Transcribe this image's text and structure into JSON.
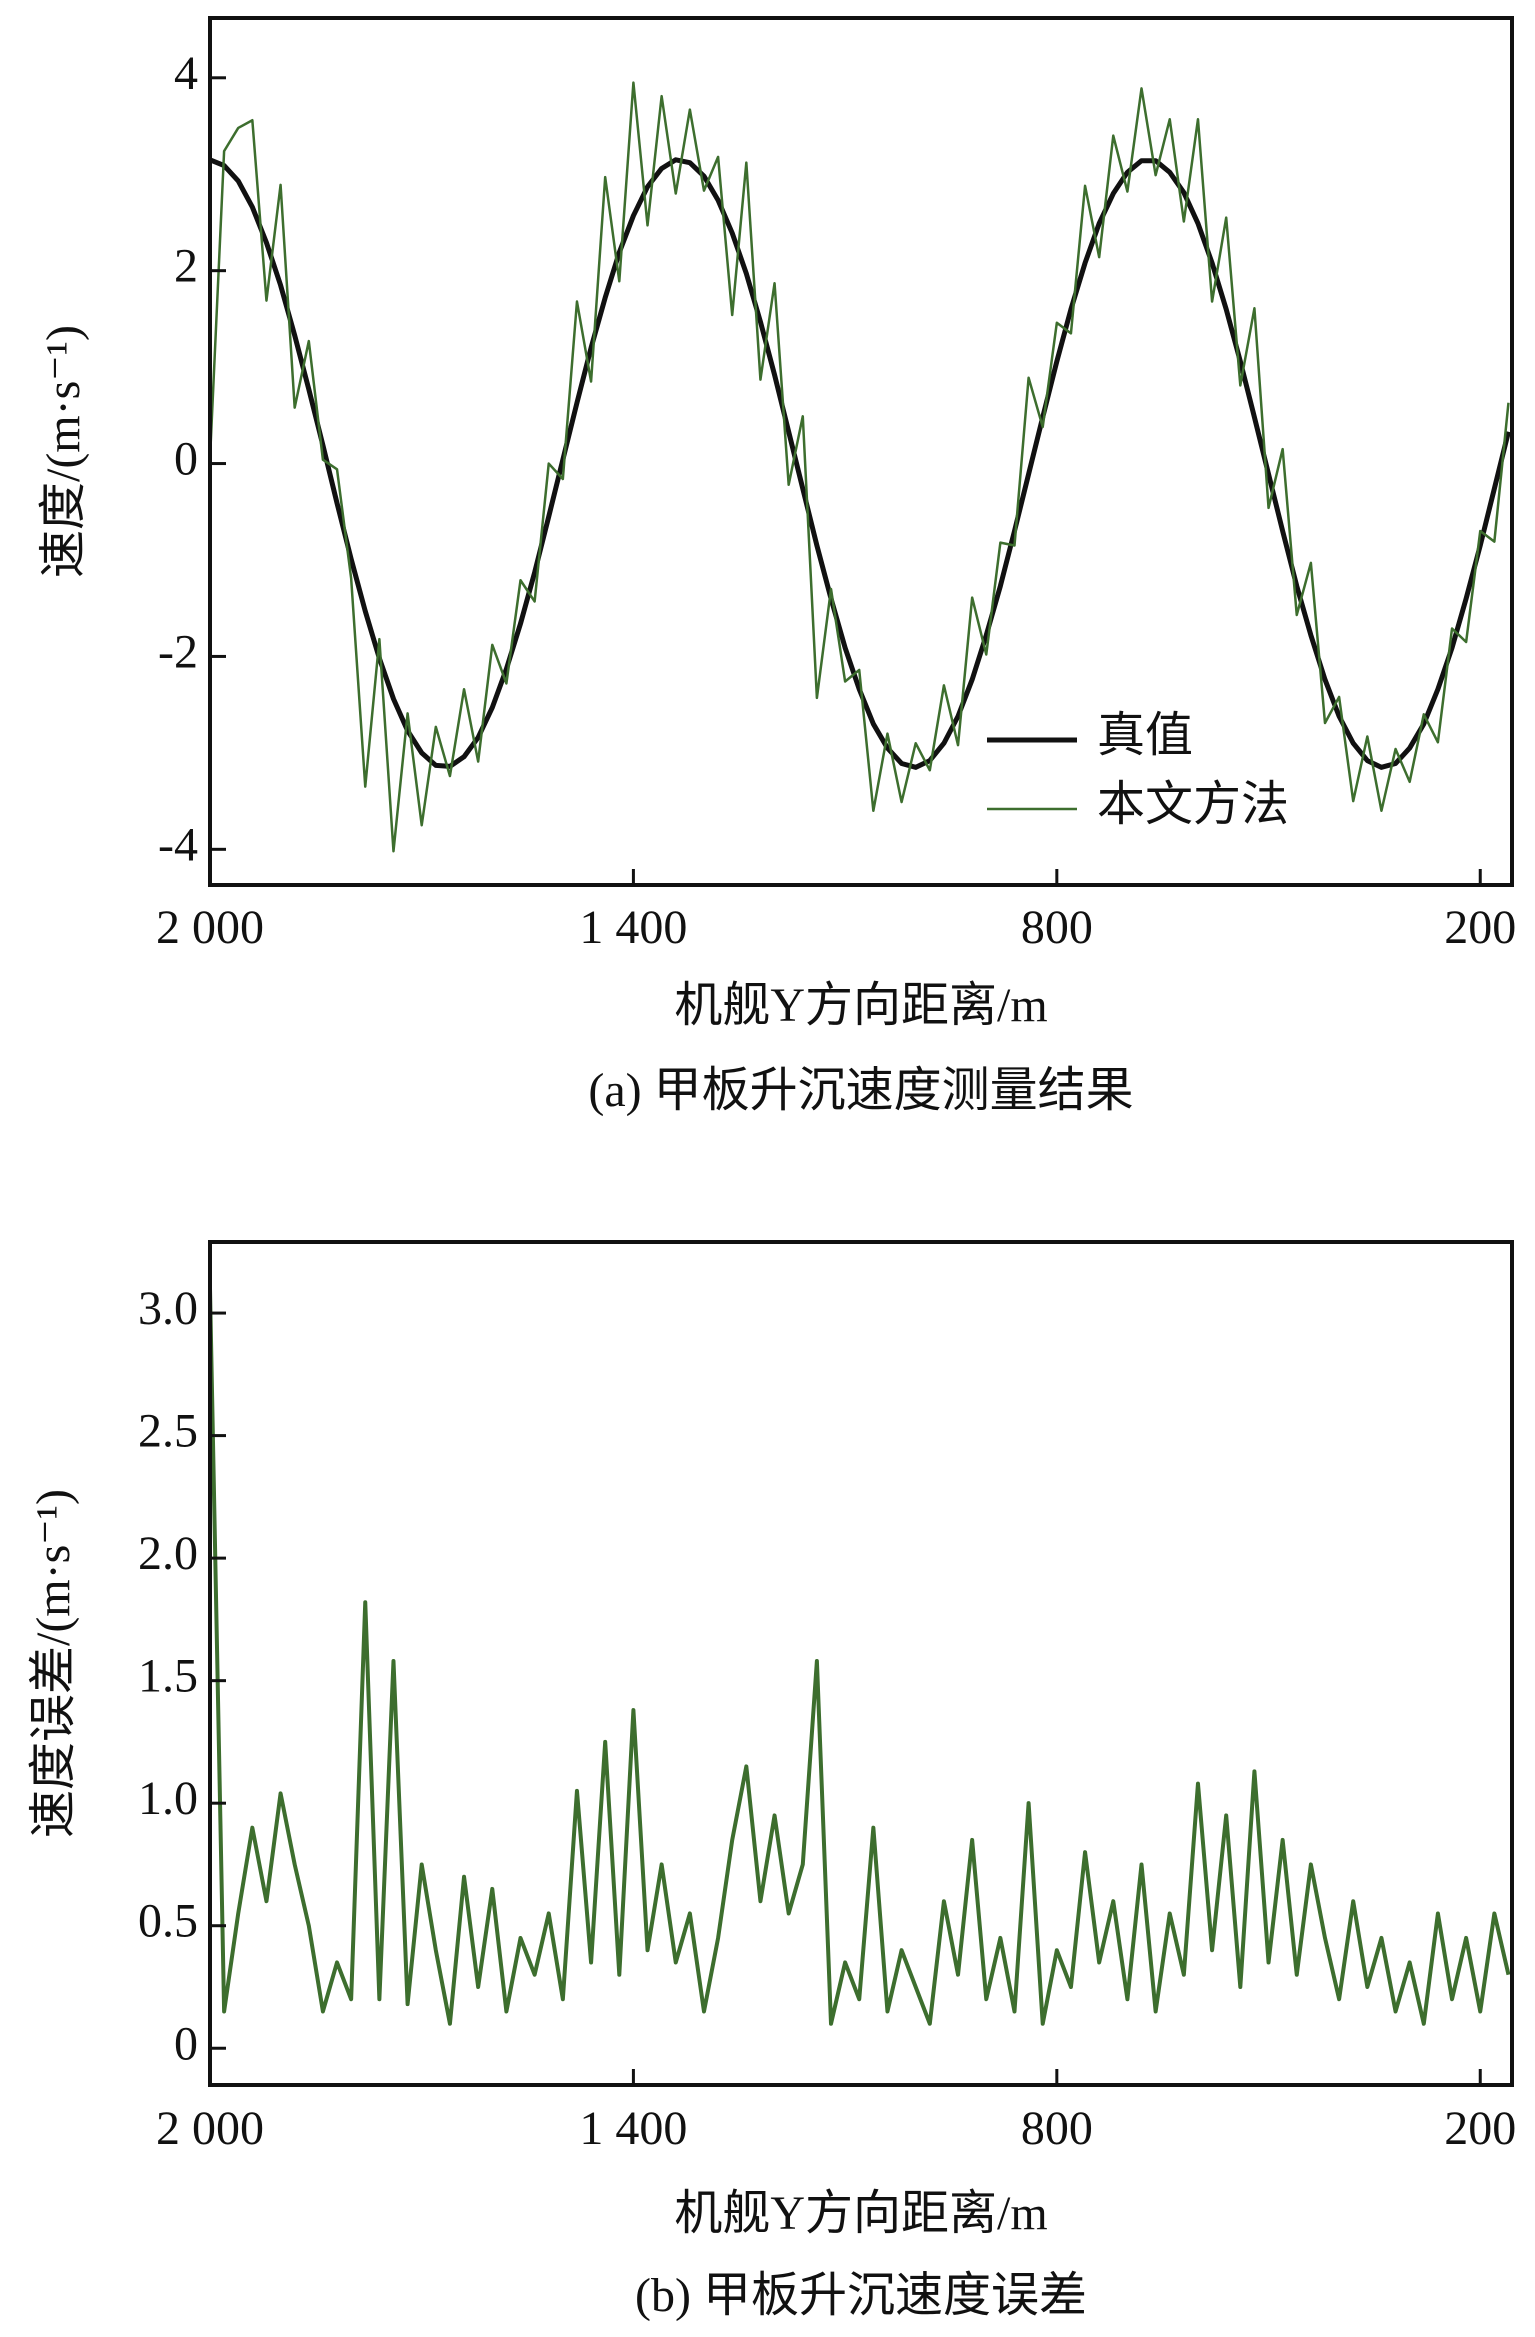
{
  "chart_data": [
    {
      "type": "line",
      "title": "(a) 甲板升沉速度测量结果",
      "x_label": "机舰Y方向距离/m",
      "y_label": "速度/(m·s⁻¹)",
      "x": [
        2000,
        1980,
        1960,
        1940,
        1920,
        1900,
        1880,
        1860,
        1840,
        1820,
        1800,
        1780,
        1760,
        1740,
        1720,
        1700,
        1680,
        1660,
        1640,
        1620,
        1600,
        1580,
        1560,
        1540,
        1520,
        1500,
        1480,
        1460,
        1440,
        1420,
        1400,
        1380,
        1360,
        1340,
        1320,
        1300,
        1280,
        1260,
        1240,
        1220,
        1200,
        1180,
        1160,
        1140,
        1120,
        1100,
        1080,
        1060,
        1040,
        1020,
        1000,
        980,
        960,
        940,
        920,
        900,
        880,
        860,
        840,
        820,
        800,
        780,
        760,
        740,
        720,
        700,
        680,
        660,
        640,
        620,
        600,
        580,
        560,
        540,
        520,
        500,
        480,
        460,
        440,
        420,
        400,
        380,
        360,
        340,
        320,
        300,
        280,
        260,
        240,
        220,
        200,
        180,
        160
      ],
      "series": [
        {
          "name": "真值",
          "color": "#111111",
          "values": [
            3.15,
            3.09,
            2.93,
            2.66,
            2.29,
            1.85,
            1.33,
            0.77,
            0.19,
            -0.41,
            -0.99,
            -1.53,
            -2.02,
            -2.44,
            -2.77,
            -3.0,
            -3.13,
            -3.14,
            -3.04,
            -2.84,
            -2.53,
            -2.13,
            -1.66,
            -1.13,
            -0.55,
            0.04,
            0.63,
            1.2,
            1.72,
            2.19,
            2.57,
            2.87,
            3.06,
            3.15,
            3.12,
            2.98,
            2.73,
            2.39,
            1.97,
            1.47,
            0.92,
            0.33,
            -0.26,
            -0.85,
            -1.4,
            -1.91,
            -2.34,
            -2.7,
            -2.95,
            -3.11,
            -3.15,
            -3.08,
            -2.9,
            -2.62,
            -2.24,
            -1.78,
            -1.27,
            -0.7,
            -0.11,
            0.48,
            1.06,
            1.6,
            2.08,
            2.49,
            2.8,
            3.02,
            3.14,
            3.14,
            3.02,
            2.81,
            2.49,
            2.08,
            1.6,
            1.06,
            0.48,
            -0.11,
            -0.7,
            -1.27,
            -1.78,
            -2.24,
            -2.62,
            -2.9,
            -3.08,
            -3.15,
            -3.11,
            -2.95,
            -2.7,
            -2.34,
            -1.91,
            -1.4,
            -0.85,
            -0.26,
            0.33
          ]
        },
        {
          "name": "本文方法",
          "color": "#3d6e2e",
          "values": [
            0.05,
            3.24,
            3.48,
            3.56,
            1.69,
            2.89,
            0.58,
            1.27,
            0.04,
            -0.06,
            -1.19,
            -3.35,
            -1.82,
            -4.02,
            -2.59,
            -3.75,
            -2.73,
            -3.24,
            -2.34,
            -3.09,
            -1.88,
            -2.28,
            -1.21,
            -1.43,
            0.0,
            -0.16,
            1.68,
            0.85,
            2.97,
            1.89,
            3.95,
            2.47,
            3.81,
            2.8,
            3.67,
            2.83,
            3.18,
            1.54,
            3.12,
            0.87,
            1.87,
            -0.22,
            0.49,
            -2.43,
            -1.3,
            -2.26,
            -2.14,
            -3.6,
            -2.8,
            -3.51,
            -2.9,
            -3.18,
            -2.3,
            -2.92,
            -1.39,
            -1.98,
            -0.82,
            -0.85,
            0.89,
            0.38,
            1.46,
            1.35,
            2.88,
            2.14,
            3.4,
            2.82,
            3.89,
            2.99,
            3.57,
            2.51,
            3.57,
            1.68,
            2.55,
            0.81,
            1.61,
            -0.46,
            0.15,
            -1.57,
            -1.03,
            -2.69,
            -2.42,
            -3.5,
            -2.83,
            -3.6,
            -2.96,
            -3.3,
            -2.6,
            -2.89,
            -1.71,
            -1.85,
            -0.7,
            -0.81,
            0.63
          ]
        }
      ],
      "xlim": [
        2000,
        155
      ],
      "xticks": [
        {
          "value": 2000,
          "label": "2 000"
        },
        {
          "value": 1400,
          "label": "1 400"
        },
        800,
        200
      ],
      "ylim": [
        -4.37,
        4.62
      ],
      "yticks": [
        -4,
        -2,
        0,
        2,
        4
      ],
      "legend": "lower right"
    },
    {
      "type": "line",
      "title": "(b) 甲板升沉速度误差",
      "x_label": "机舰Y方向距离/m",
      "y_label": "速度误差/(m·s⁻¹)",
      "x": [
        2000,
        1980,
        1960,
        1940,
        1920,
        1900,
        1880,
        1860,
        1840,
        1820,
        1800,
        1780,
        1760,
        1740,
        1720,
        1700,
        1680,
        1660,
        1640,
        1620,
        1600,
        1580,
        1560,
        1540,
        1520,
        1500,
        1480,
        1460,
        1440,
        1420,
        1400,
        1380,
        1360,
        1340,
        1320,
        1300,
        1280,
        1260,
        1240,
        1220,
        1200,
        1180,
        1160,
        1140,
        1120,
        1100,
        1080,
        1060,
        1040,
        1020,
        1000,
        980,
        960,
        940,
        920,
        900,
        880,
        860,
        840,
        820,
        800,
        780,
        760,
        740,
        720,
        700,
        680,
        660,
        640,
        620,
        600,
        580,
        560,
        540,
        520,
        500,
        480,
        460,
        440,
        420,
        400,
        380,
        360,
        340,
        320,
        300,
        280,
        260,
        240,
        220,
        200,
        180,
        160
      ],
      "series": [
        {
          "color": "#3d6e2e",
          "values": [
            3.1,
            0.15,
            0.55,
            0.9,
            0.6,
            1.04,
            0.75,
            0.5,
            0.15,
            0.35,
            0.2,
            1.82,
            0.2,
            1.58,
            0.18,
            0.75,
            0.4,
            0.1,
            0.7,
            0.25,
            0.65,
            0.15,
            0.45,
            0.3,
            0.55,
            0.2,
            1.05,
            0.35,
            1.25,
            0.3,
            1.38,
            0.4,
            0.75,
            0.35,
            0.55,
            0.15,
            0.45,
            0.85,
            1.15,
            0.6,
            0.95,
            0.55,
            0.75,
            1.58,
            0.1,
            0.35,
            0.2,
            0.9,
            0.15,
            0.4,
            0.25,
            0.1,
            0.6,
            0.3,
            0.85,
            0.2,
            0.45,
            0.15,
            1.0,
            0.1,
            0.4,
            0.25,
            0.8,
            0.35,
            0.6,
            0.2,
            0.75,
            0.15,
            0.55,
            0.3,
            1.08,
            0.4,
            0.95,
            0.25,
            1.13,
            0.35,
            0.85,
            0.3,
            0.75,
            0.45,
            0.2,
            0.6,
            0.25,
            0.45,
            0.15,
            0.35,
            0.1,
            0.55,
            0.2,
            0.45,
            0.15,
            0.55,
            0.3
          ]
        }
      ],
      "xlim": [
        2000,
        155
      ],
      "xticks": [
        {
          "value": 2000,
          "label": "2 000"
        },
        {
          "value": 1400,
          "label": "1 400"
        },
        800,
        200
      ],
      "ylim": [
        -0.15,
        3.29
      ],
      "yticks": [
        0,
        0.5,
        {
          "value": 1,
          "label": "1.0"
        },
        1.5,
        {
          "value": 2,
          "label": "2.0"
        },
        2.5,
        {
          "value": 3,
          "label": "3.0"
        }
      ]
    }
  ]
}
